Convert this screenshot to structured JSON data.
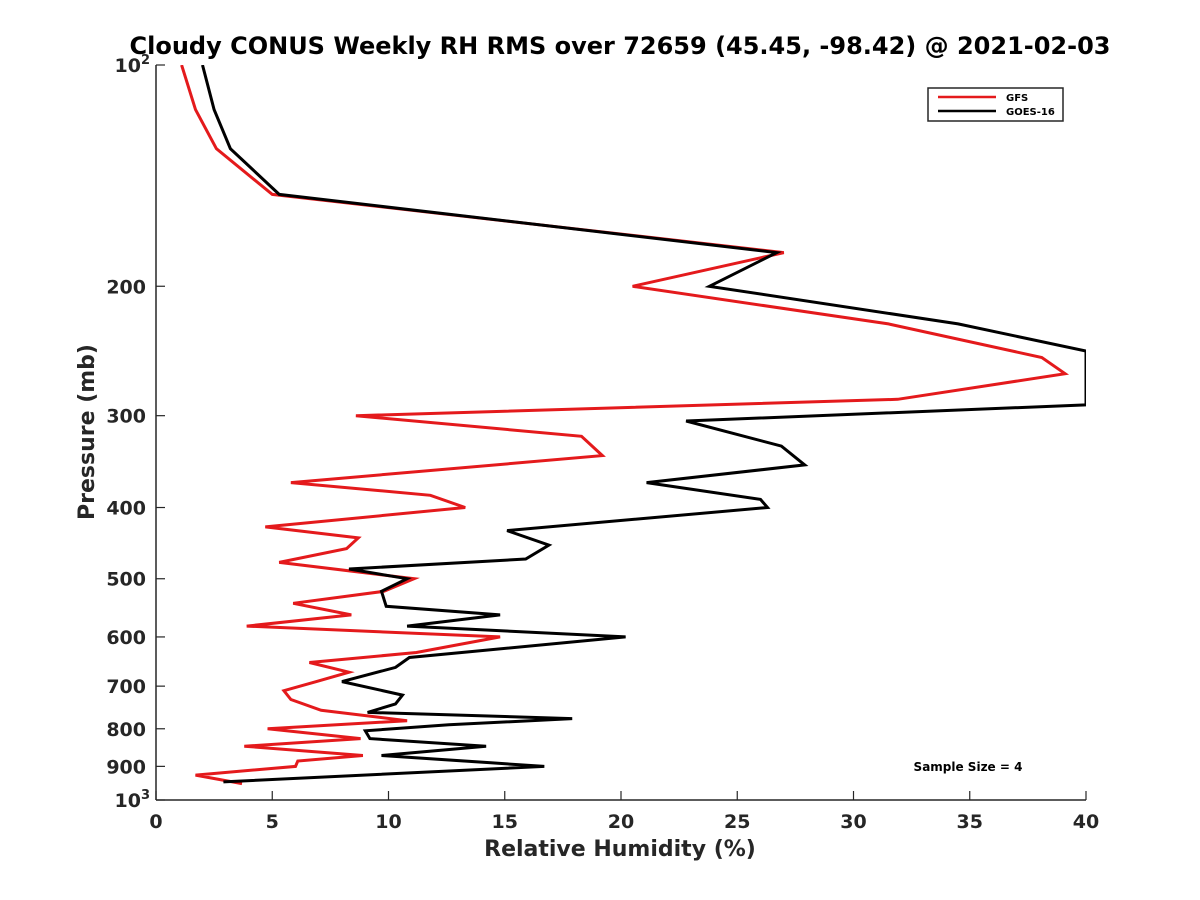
{
  "chart_data": {
    "type": "line",
    "title": "Cloudy CONUS Weekly RH RMS over 72659 (45.45, -98.42) @ 2021-02-03",
    "xlabel": "Relative Humidity (%)",
    "ylabel": "Pressure (mb)",
    "xlim": [
      0,
      40
    ],
    "ylim": [
      100,
      1000
    ],
    "y_scale": "log",
    "y_reversed": true,
    "x_ticks": [
      0,
      5,
      10,
      15,
      20,
      25,
      30,
      35,
      40
    ],
    "x_tick_labels": [
      "0",
      "5",
      "10",
      "15",
      "20",
      "25",
      "30",
      "35",
      "40"
    ],
    "y_ticks": [
      {
        "value": 100,
        "label": "10",
        "sup": "2"
      },
      {
        "value": 200,
        "label": "200",
        "sup": ""
      },
      {
        "value": 300,
        "label": "300",
        "sup": ""
      },
      {
        "value": 400,
        "label": "400",
        "sup": ""
      },
      {
        "value": 500,
        "label": "500",
        "sup": ""
      },
      {
        "value": 600,
        "label": "600",
        "sup": ""
      },
      {
        "value": 700,
        "label": "700",
        "sup": ""
      },
      {
        "value": 800,
        "label": "800",
        "sup": ""
      },
      {
        "value": 900,
        "label": "900",
        "sup": ""
      },
      {
        "value": 1000,
        "label": "10",
        "sup": "3"
      }
    ],
    "grid": false,
    "legend_position": "top-right",
    "annotation": "Sample Size = 4",
    "series": [
      {
        "name": "GFS",
        "color": "#e41a1c",
        "points": [
          [
            1.1,
            100
          ],
          [
            1.7,
            115
          ],
          [
            2.6,
            130
          ],
          [
            5.0,
            150
          ],
          [
            27.0,
            180
          ],
          [
            20.5,
            200
          ],
          [
            31.5,
            225
          ],
          [
            38.1,
            250
          ],
          [
            39.1,
            263
          ],
          [
            31.9,
            285
          ],
          [
            8.6,
            300
          ],
          [
            18.3,
            320
          ],
          [
            19.2,
            340
          ],
          [
            5.8,
            370
          ],
          [
            11.8,
            385
          ],
          [
            13.3,
            400
          ],
          [
            4.7,
            425
          ],
          [
            8.7,
            440
          ],
          [
            8.2,
            455
          ],
          [
            5.3,
            475
          ],
          [
            11.1,
            500
          ],
          [
            9.8,
            520
          ],
          [
            5.9,
            540
          ],
          [
            8.4,
            560
          ],
          [
            3.9,
            580
          ],
          [
            14.8,
            600
          ],
          [
            11.2,
            630
          ],
          [
            6.6,
            650
          ],
          [
            8.3,
            670
          ],
          [
            6.9,
            690
          ],
          [
            5.5,
            710
          ],
          [
            5.8,
            730
          ],
          [
            7.1,
            755
          ],
          [
            10.8,
            780
          ],
          [
            4.8,
            800
          ],
          [
            8.8,
            825
          ],
          [
            3.8,
            845
          ],
          [
            8.9,
            870
          ],
          [
            6.1,
            885
          ],
          [
            6.0,
            900
          ],
          [
            1.7,
            925
          ],
          [
            3.7,
            950
          ]
        ]
      },
      {
        "name": "GOES-16",
        "color": "#000000",
        "points": [
          [
            2.0,
            100
          ],
          [
            2.5,
            115
          ],
          [
            3.2,
            130
          ],
          [
            5.3,
            150
          ],
          [
            26.7,
            180
          ],
          [
            23.8,
            200
          ],
          [
            34.5,
            225
          ],
          [
            40.0,
            245
          ],
          [
            40.0,
            290
          ],
          [
            22.8,
            305
          ],
          [
            26.9,
            330
          ],
          [
            27.9,
            350
          ],
          [
            21.1,
            370
          ],
          [
            26.0,
            390
          ],
          [
            26.3,
            400
          ],
          [
            15.1,
            430
          ],
          [
            16.9,
            450
          ],
          [
            15.9,
            470
          ],
          [
            8.3,
            485
          ],
          [
            10.8,
            500
          ],
          [
            9.7,
            520
          ],
          [
            9.9,
            545
          ],
          [
            14.8,
            560
          ],
          [
            10.8,
            580
          ],
          [
            20.2,
            600
          ],
          [
            10.9,
            640
          ],
          [
            10.3,
            660
          ],
          [
            8.0,
            690
          ],
          [
            10.6,
            720
          ],
          [
            10.3,
            740
          ],
          [
            9.1,
            760
          ],
          [
            17.9,
            775
          ],
          [
            12.6,
            790
          ],
          [
            9.0,
            805
          ],
          [
            9.2,
            825
          ],
          [
            14.2,
            845
          ],
          [
            9.7,
            870
          ],
          [
            14.4,
            890
          ],
          [
            16.7,
            900
          ],
          [
            2.9,
            945
          ]
        ]
      }
    ]
  }
}
